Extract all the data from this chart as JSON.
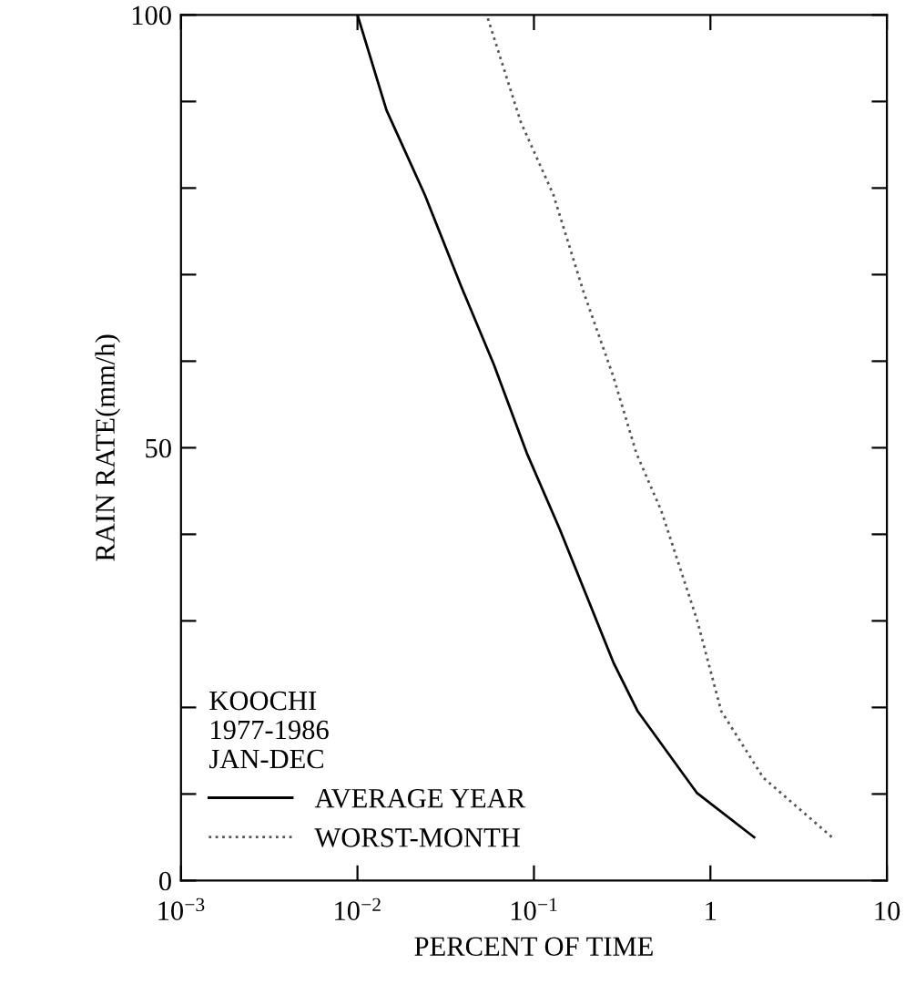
{
  "chart_data": {
    "type": "line",
    "xlabel": "PERCENT OF TIME",
    "ylabel": "RAIN RATE(mm/h)",
    "log": "x",
    "xlim": [
      0.001,
      10
    ],
    "ylim": [
      0,
      100
    ],
    "xticks": [
      {
        "value": 0.001,
        "label": "10$^{−3}$"
      },
      {
        "value": 0.01,
        "label": "10$^{−2}$"
      },
      {
        "value": 0.1,
        "label": "10$^{−1}$"
      },
      1,
      10
    ],
    "yticks": [
      0,
      {
        "value": 10,
        "label": null
      },
      {
        "value": 20,
        "label": null
      },
      {
        "value": 30,
        "label": null
      },
      {
        "value": 40,
        "label": null
      },
      50,
      {
        "value": 60,
        "label": null
      },
      {
        "value": 70,
        "label": null
      },
      {
        "value": 80,
        "label": null
      },
      {
        "value": 90,
        "label": null
      },
      100
    ],
    "legend_title": "KOOCHI\n1977-1986\nJAN-DEC",
    "legend": "bottom left",
    "grid": false,
    "series": [
      {
        "name": "AVERAGE YEAR",
        "color": "#000000",
        "line_style": "solid",
        "x": [
          0.01,
          0.0146,
          0.0241,
          0.0386,
          0.0593,
          0.091,
          0.14,
          0.282,
          0.386,
          0.84,
          1.77
        ],
        "values": [
          100,
          89,
          79.2,
          68.7,
          59.6,
          49.4,
          40.6,
          25.2,
          19.6,
          10.1,
          5
        ]
      },
      {
        "name": "WORST-MONTH",
        "color": "#555555",
        "line_style": "dotted",
        "x": [
          0.0548,
          0.0843,
          0.129,
          0.191,
          0.282,
          0.38,
          0.527,
          0.84,
          1.15,
          1.99,
          4.89
        ],
        "values": [
          99.6,
          87.6,
          79.2,
          68,
          58.2,
          49.4,
          42.7,
          30.1,
          19.6,
          11.9,
          5
        ]
      }
    ]
  }
}
